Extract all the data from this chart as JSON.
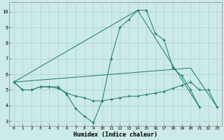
{
  "xlabel": "Humidex (Indice chaleur)",
  "background_color": "#cceae7",
  "grid_color": "#aad4d0",
  "line_color": "#1a7a6e",
  "xlim": [
    -0.5,
    23.5
  ],
  "ylim": [
    2.7,
    10.6
  ],
  "xticks": [
    0,
    1,
    2,
    3,
    4,
    5,
    6,
    7,
    8,
    9,
    10,
    11,
    12,
    13,
    14,
    15,
    16,
    17,
    18,
    19,
    20,
    21,
    22,
    23
  ],
  "yticks": [
    3,
    4,
    5,
    6,
    7,
    8,
    9,
    10
  ],
  "lines": [
    {
      "x": [
        0,
        1,
        2,
        3,
        4,
        5,
        6,
        7,
        8,
        9,
        10,
        11,
        12,
        13,
        14,
        15,
        16,
        17,
        18,
        19,
        20,
        21
      ],
      "y": [
        5.5,
        5.0,
        5.0,
        5.2,
        5.2,
        5.2,
        4.7,
        3.8,
        3.3,
        2.9,
        4.3,
        7.0,
        9.0,
        9.5,
        10.1,
        10.1,
        8.6,
        8.2,
        6.4,
        5.9,
        5.0,
        3.9
      ],
      "marker": true
    },
    {
      "x": [
        0,
        1,
        2,
        3,
        4,
        5,
        6,
        7,
        8,
        9,
        10,
        11,
        12,
        13,
        14,
        15,
        16,
        17,
        18,
        19,
        20,
        21,
        22,
        23
      ],
      "y": [
        5.5,
        5.0,
        5.0,
        5.2,
        5.2,
        5.1,
        4.8,
        4.6,
        4.5,
        4.3,
        4.3,
        4.4,
        4.5,
        4.6,
        4.6,
        4.7,
        4.8,
        4.9,
        5.1,
        5.3,
        5.5,
        5.0,
        5.0,
        3.9
      ],
      "marker": true
    },
    {
      "comment": "straight line from (0,5.5) to (14,10.1) to (21,3.9)",
      "x": [
        0,
        14,
        21
      ],
      "y": [
        5.5,
        10.1,
        3.9
      ],
      "marker": false
    },
    {
      "comment": "straight line from (0,5.5) to (20,6.4) to (23,3.9)",
      "x": [
        0,
        20,
        23
      ],
      "y": [
        5.5,
        6.4,
        3.9
      ],
      "marker": false
    }
  ]
}
